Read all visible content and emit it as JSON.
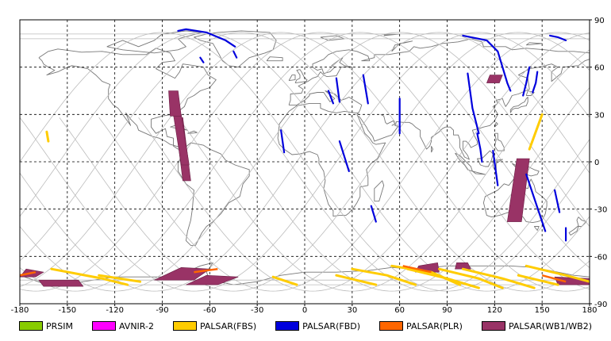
{
  "map": {
    "lon_range": [
      -180,
      180
    ],
    "lat_range": [
      -90,
      90
    ],
    "lon_ticks": [
      "-180",
      "-150",
      "-120",
      "-90",
      "-60",
      "-30",
      "0",
      "30",
      "60",
      "90",
      "120",
      "150",
      "180"
    ],
    "lat_ticks": [
      "90",
      "60",
      "30",
      "0",
      "-30",
      "-60",
      "-90"
    ]
  },
  "legend": [
    {
      "label": "PRSIM",
      "color": "#88cc00"
    },
    {
      "label": "AVNIR-2",
      "color": "#ff00ff"
    },
    {
      "label": "PALSAR(FBS)",
      "color": "#ffcc00"
    },
    {
      "label": "PALSAR(FBD)",
      "color": "#0000dd"
    },
    {
      "label": "PALSAR(PLR)",
      "color": "#ff6600"
    },
    {
      "label": "PALSAR(WB1/WB2)",
      "color": "#993366"
    }
  ],
  "observations": {
    "wb": [
      [
        [
          -77,
          -12
        ],
        [
          -72,
          -12
        ],
        [
          -77,
          28
        ],
        [
          -82,
          28
        ]
      ],
      [
        [
          -78,
          -2
        ],
        [
          -73,
          -2
        ],
        [
          -78,
          30
        ],
        [
          -83,
          30
        ]
      ],
      [
        [
          -85,
          29
        ],
        [
          -78,
          29
        ],
        [
          -80,
          45
        ],
        [
          -86,
          45
        ]
      ],
      [
        [
          128,
          -38
        ],
        [
          137,
          -38
        ],
        [
          142,
          2
        ],
        [
          134,
          2
        ]
      ],
      [
        [
          -180,
          -73
        ],
        [
          -170,
          -73
        ],
        [
          -165,
          -70
        ],
        [
          -176,
          -68
        ]
      ],
      [
        [
          -165,
          -79
        ],
        [
          -140,
          -79
        ],
        [
          -143,
          -75
        ],
        [
          -168,
          -75
        ]
      ],
      [
        [
          -95,
          -75
        ],
        [
          -70,
          -75
        ],
        [
          -60,
          -68
        ],
        [
          -78,
          -67
        ]
      ],
      [
        [
          -75,
          -78
        ],
        [
          -55,
          -78
        ],
        [
          -42,
          -73
        ],
        [
          -62,
          -72
        ]
      ],
      [
        [
          70,
          -70
        ],
        [
          85,
          -70
        ],
        [
          84,
          -64
        ],
        [
          72,
          -66
        ]
      ],
      [
        [
          95,
          -68
        ],
        [
          105,
          -68
        ],
        [
          103,
          -64
        ],
        [
          96,
          -64
        ]
      ],
      [
        [
          160,
          -78
        ],
        [
          180,
          -78
        ],
        [
          180,
          -74
        ],
        [
          158,
          -73
        ]
      ],
      [
        [
          115,
          50
        ],
        [
          123,
          50
        ],
        [
          125,
          55
        ],
        [
          117,
          55
        ]
      ]
    ],
    "fbd": [
      [
        [
          -80,
          83
        ],
        [
          -75,
          84
        ],
        [
          -62,
          82
        ],
        [
          -50,
          77
        ],
        [
          -44,
          73
        ]
      ],
      [
        [
          -66,
          66
        ],
        [
          -64,
          63
        ]
      ],
      [
        [
          -45,
          70
        ],
        [
          -43,
          66
        ]
      ],
      [
        [
          100,
          80
        ],
        [
          115,
          77
        ],
        [
          122,
          70
        ],
        [
          125,
          60
        ],
        [
          128,
          50
        ],
        [
          130,
          45
        ]
      ],
      [
        [
          155,
          80
        ],
        [
          160,
          79
        ],
        [
          165,
          77
        ]
      ],
      [
        [
          147,
          57
        ],
        [
          146,
          50
        ],
        [
          144,
          44
        ]
      ],
      [
        [
          142,
          60
        ],
        [
          140,
          50
        ],
        [
          138,
          42
        ]
      ],
      [
        [
          103,
          56
        ],
        [
          106,
          34
        ],
        [
          110,
          18
        ]
      ],
      [
        [
          109,
          18
        ],
        [
          111,
          8
        ],
        [
          112,
          0
        ]
      ],
      [
        [
          15,
          45
        ],
        [
          18,
          37
        ]
      ],
      [
        [
          20,
          53
        ],
        [
          22,
          38
        ]
      ],
      [
        [
          -15,
          20
        ],
        [
          -13,
          6
        ]
      ],
      [
        [
          37,
          55
        ],
        [
          40,
          37
        ]
      ],
      [
        [
          22,
          13
        ],
        [
          28,
          -6
        ]
      ],
      [
        [
          60,
          18
        ],
        [
          60,
          40
        ]
      ],
      [
        [
          119,
          7
        ],
        [
          122,
          -15
        ]
      ],
      [
        [
          140,
          -8
        ],
        [
          152,
          -44
        ]
      ],
      [
        [
          158,
          -18
        ],
        [
          161,
          -32
        ]
      ],
      [
        [
          165,
          -42
        ],
        [
          165,
          -50
        ]
      ],
      [
        [
          42,
          -28
        ],
        [
          45,
          -38
        ]
      ]
    ],
    "fbs": [
      [
        [
          -160,
          -68
        ],
        [
          -128,
          -74
        ],
        [
          -112,
          -78
        ]
      ],
      [
        [
          -130,
          -72
        ],
        [
          -104,
          -76
        ]
      ],
      [
        [
          -20,
          -73
        ],
        [
          -5,
          -78
        ]
      ],
      [
        [
          30,
          -68
        ],
        [
          52,
          -72
        ],
        [
          70,
          -78
        ]
      ],
      [
        [
          20,
          -72
        ],
        [
          45,
          -78
        ]
      ],
      [
        [
          55,
          -66
        ],
        [
          80,
          -70
        ],
        [
          98,
          -78
        ]
      ],
      [
        [
          65,
          -68
        ],
        [
          90,
          -74
        ],
        [
          110,
          -80
        ]
      ],
      [
        [
          85,
          -68
        ],
        [
          110,
          -74
        ],
        [
          125,
          -80
        ]
      ],
      [
        [
          100,
          -68
        ],
        [
          125,
          -74
        ],
        [
          145,
          -80
        ]
      ],
      [
        [
          140,
          -66
        ],
        [
          165,
          -72
        ],
        [
          180,
          -76
        ]
      ],
      [
        [
          135,
          -72
        ],
        [
          160,
          -78
        ]
      ],
      [
        [
          150,
          30
        ],
        [
          142,
          8
        ]
      ],
      [
        [
          -163,
          19
        ],
        [
          -162,
          13
        ]
      ]
    ],
    "plr": [
      [
        [
          -180,
          -72
        ],
        [
          -170,
          -70
        ]
      ],
      [
        [
          -70,
          -70
        ],
        [
          -55,
          -68
        ]
      ],
      [
        [
          62,
          -66
        ],
        [
          80,
          -70
        ]
      ],
      [
        [
          150,
          -72
        ],
        [
          165,
          -76
        ]
      ]
    ]
  }
}
